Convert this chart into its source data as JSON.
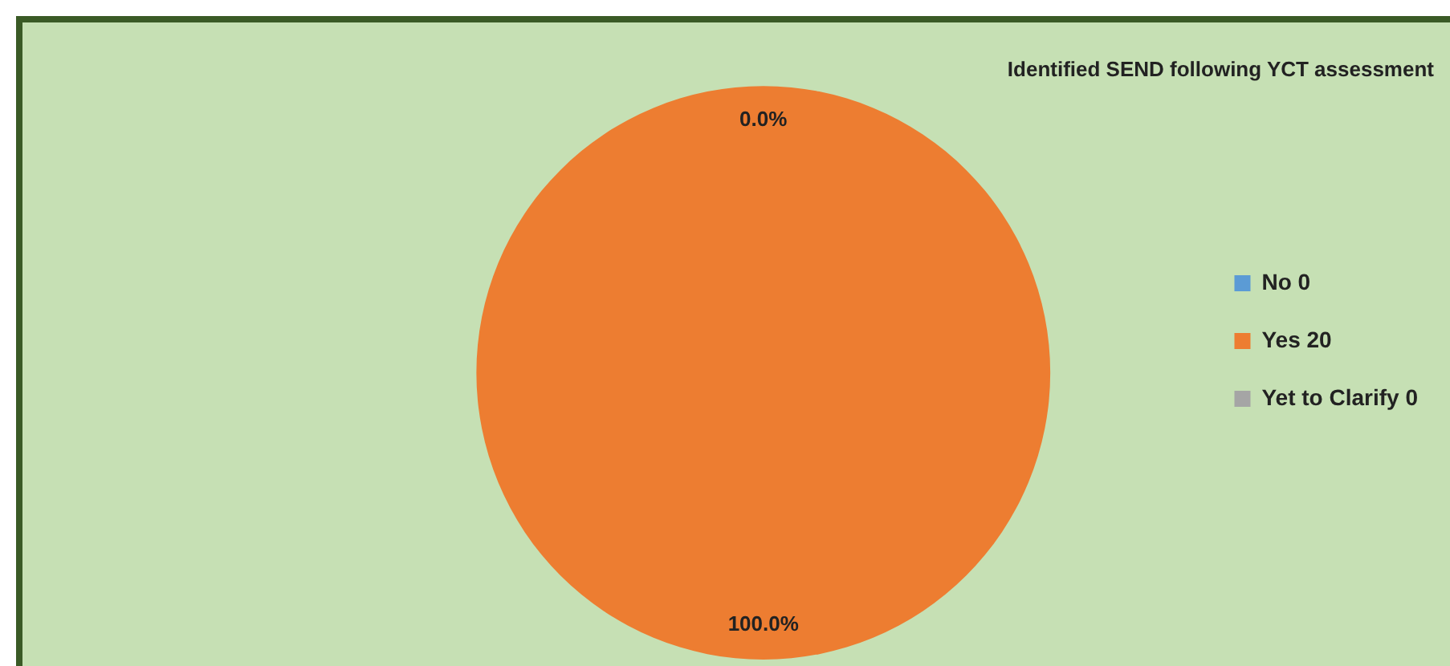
{
  "chart_data": {
    "type": "pie",
    "title": "Identified SEND following YCT assessment",
    "categories": [
      "No 0",
      "Yes 20",
      "Yet to Clarify 0"
    ],
    "values": [
      0,
      100,
      0
    ],
    "colors": [
      "#5b9bd5",
      "#ed7d31",
      "#a5a5a5"
    ],
    "value_labels": [
      "0.0%",
      "100.0%",
      null
    ],
    "legend": "right"
  }
}
